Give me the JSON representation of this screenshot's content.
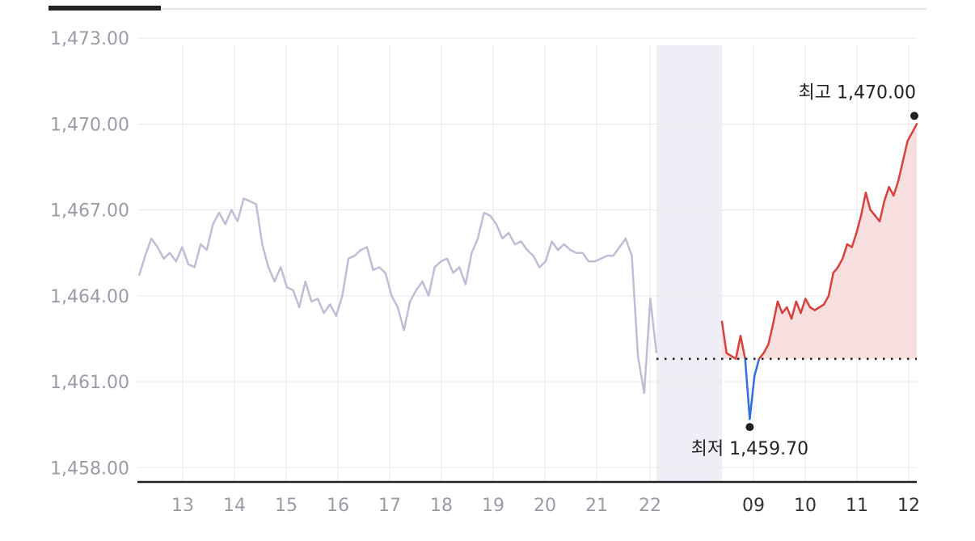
{
  "chart_data": {
    "type": "line",
    "title": "",
    "xlabel": "",
    "ylabel": "",
    "ylim": [
      1457.5,
      1473.2
    ],
    "y_ticks": [
      "1,473.00",
      "1,470.00",
      "1,467.00",
      "1,464.00",
      "1,461.00",
      "1,458.00"
    ],
    "y_tick_values": [
      1473,
      1470,
      1467,
      1464,
      1461,
      1458
    ],
    "previous_period": {
      "x_labels": [
        "13",
        "14",
        "15",
        "16",
        "17",
        "18",
        "19",
        "20",
        "21",
        "22"
      ],
      "color": "#bcbfd6",
      "values": [
        1464.7,
        1465.4,
        1466.0,
        1465.7,
        1465.3,
        1465.5,
        1465.2,
        1465.7,
        1465.1,
        1465.0,
        1465.8,
        1465.6,
        1466.5,
        1466.9,
        1466.5,
        1467.0,
        1466.6,
        1467.4,
        1467.3,
        1467.2,
        1465.8,
        1465.0,
        1464.5,
        1465.0,
        1464.3,
        1464.2,
        1463.6,
        1464.5,
        1463.8,
        1463.9,
        1463.4,
        1463.7,
        1463.3,
        1464.0,
        1465.3,
        1465.4,
        1465.6,
        1465.7,
        1464.9,
        1465.0,
        1464.8,
        1464.0,
        1463.6,
        1462.8,
        1463.8,
        1464.2,
        1464.5,
        1464.0,
        1465.0,
        1465.2,
        1465.3,
        1464.8,
        1465.0,
        1464.4,
        1465.5,
        1466.0,
        1466.9,
        1466.8,
        1466.5,
        1466.0,
        1466.2,
        1465.8,
        1465.9,
        1465.6,
        1465.4,
        1465.0,
        1465.2,
        1465.9,
        1465.6,
        1465.8,
        1465.6,
        1465.5,
        1465.5,
        1465.2,
        1465.2,
        1465.3,
        1465.4,
        1465.4,
        1465.7,
        1466.0,
        1465.4,
        1461.9,
        1460.6,
        1463.9,
        1462.0
      ]
    },
    "current_period": {
      "x_labels": [
        "09",
        "10",
        "11",
        "12"
      ],
      "rise_color": "#d9413c",
      "fall_color": "#2f6fe0",
      "area_color": "#f7dcdc",
      "values": [
        1463.1,
        1462.0,
        1461.9,
        1461.8,
        1462.6,
        1461.8,
        1459.7,
        1461.2,
        1461.8,
        1462.0,
        1462.3,
        1463.0,
        1463.8,
        1463.4,
        1463.6,
        1463.2,
        1463.8,
        1463.4,
        1463.9,
        1463.6,
        1463.5,
        1463.6,
        1463.7,
        1464.0,
        1464.8,
        1465.0,
        1465.3,
        1465.8,
        1465.7,
        1466.2,
        1466.8,
        1467.6,
        1467.0,
        1466.8,
        1466.6,
        1467.3,
        1467.8,
        1467.5,
        1468.0,
        1468.7,
        1469.4,
        1469.7,
        1470.0
      ]
    },
    "reference_value": 1461.8,
    "grid": true,
    "annotations": {
      "high_label": "최고 1,470.00",
      "high_value": 1470.0,
      "low_label": "최저 1,459.70",
      "low_value": 1459.7
    }
  },
  "colors": {
    "grid": "#e8e9ee",
    "axis": "#222222",
    "session_gap": "#eeeff6",
    "tab_indicator": "#222222",
    "tab_track": "#e6e6e6",
    "dot": "#222222"
  }
}
